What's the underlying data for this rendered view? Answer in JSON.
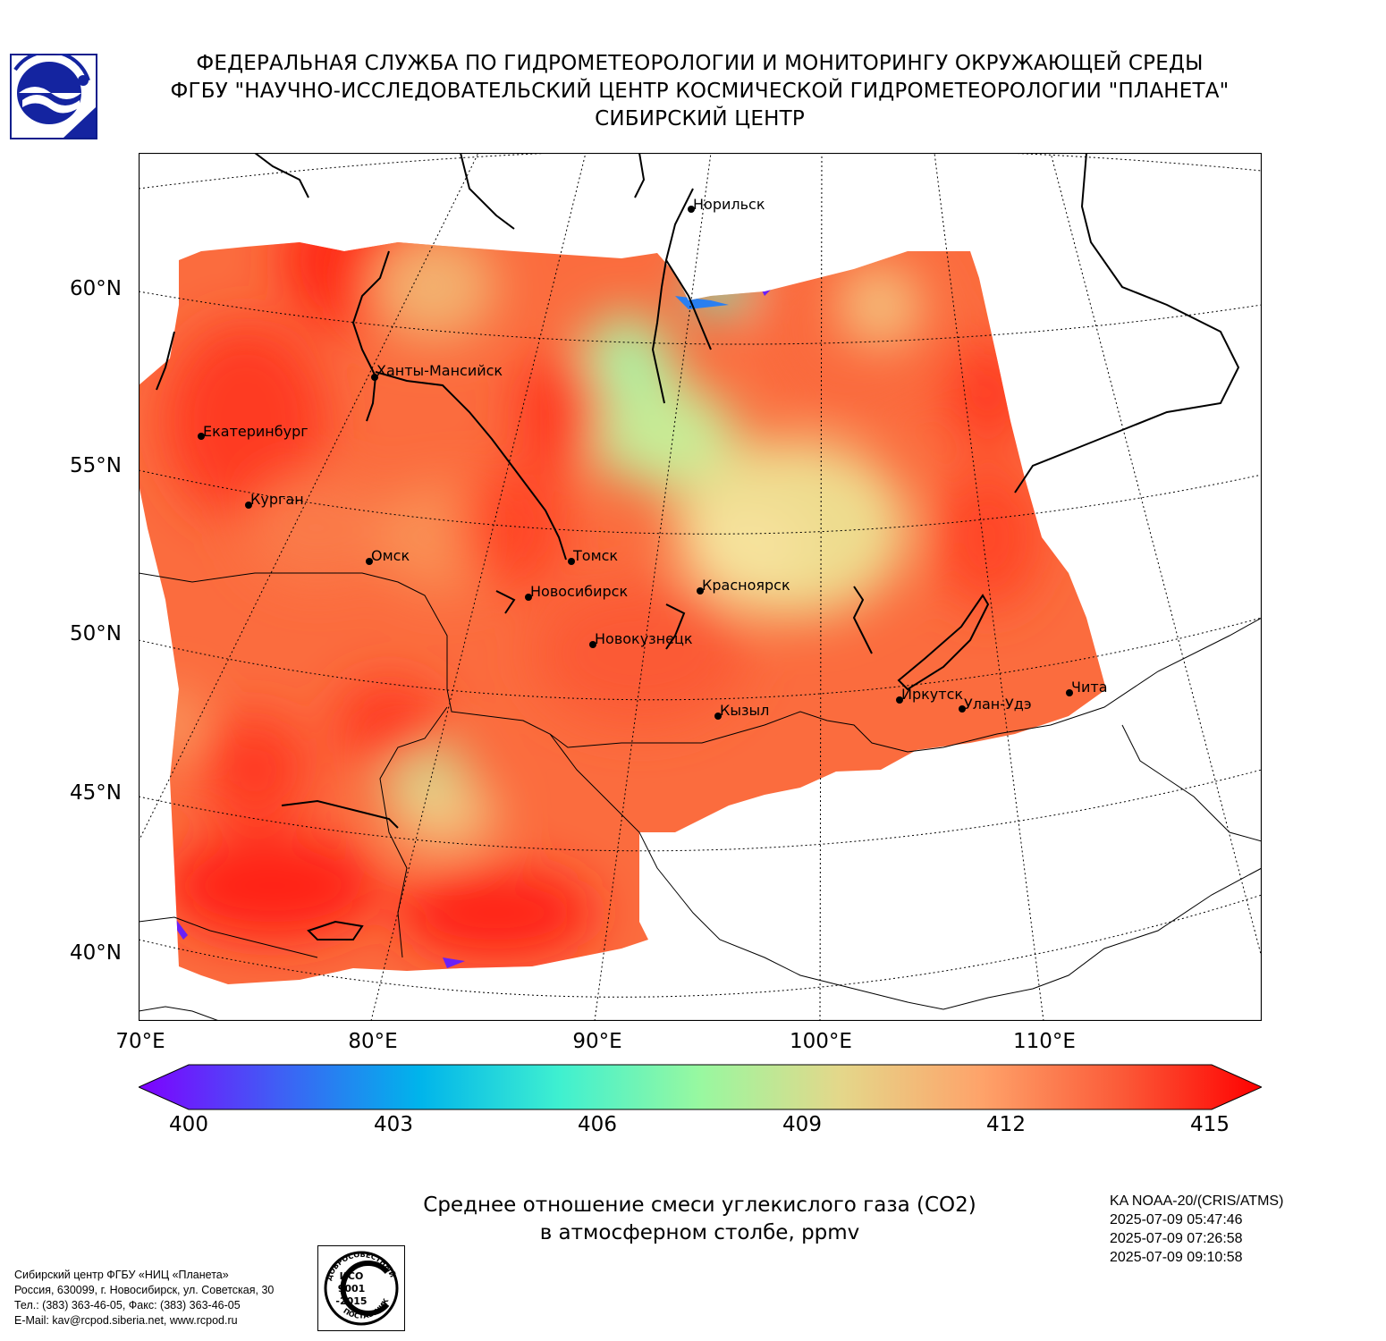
{
  "header": {
    "line1": "ФЕДЕРАЛЬНАЯ СЛУЖБА ПО ГИДРОМЕТЕОРОЛОГИИ И МОНИТОРИНГУ ОКРУЖАЮЩЕЙ СРЕДЫ",
    "line2": "ФГБУ \"НАУЧНО-ИССЛЕДОВАТЕЛЬСКИЙ ЦЕНТР КОСМИЧЕСКОЙ ГИДРОМЕТЕОРОЛОГИИ \"ПЛАНЕТА\"",
    "line3": "СИБИРСКИЙ ЦЕНТР",
    "logo_icon": "planeta-logo-icon"
  },
  "map": {
    "lat_labels": [
      "60°N",
      "55°N",
      "50°N",
      "45°N",
      "40°N"
    ],
    "lon_labels": [
      "70°E",
      "80°E",
      "90°E",
      "100°E",
      "110°E"
    ],
    "cities": [
      {
        "name": "Норильск"
      },
      {
        "name": "Ханты-Мансийск"
      },
      {
        "name": "Екатеринбург"
      },
      {
        "name": "Курган"
      },
      {
        "name": "Омск"
      },
      {
        "name": "Томск"
      },
      {
        "name": "Новосибирск"
      },
      {
        "name": "Красноярск"
      },
      {
        "name": "Новокузнецк"
      },
      {
        "name": "Кызыл"
      },
      {
        "name": "Иркутск"
      },
      {
        "name": "Улан-Удэ"
      },
      {
        "name": "Чита"
      }
    ]
  },
  "colorbar": {
    "ticks": [
      "400",
      "403",
      "406",
      "409",
      "412",
      "415"
    ],
    "range": [
      400,
      415
    ],
    "colors": [
      "#7f00ff",
      "#3f5ff5",
      "#00b4eb",
      "#3ff0d0",
      "#98f8a0",
      "#e4d78a",
      "#fea36a",
      "#fb5a38",
      "#ff0000"
    ]
  },
  "caption": {
    "line1": "Среднее отношение смеси углекислого газа (CO2)",
    "line2": "в атмосферном столбе, ppmv"
  },
  "satellite": {
    "name": "KA NOAA-20/(CRIS/ATMS)",
    "times": [
      "2025-07-09 05:47:46",
      "2025-07-09 07:26:58",
      "2025-07-09 09:10:58"
    ]
  },
  "organization": {
    "lines": [
      "Сибирский центр ФГБУ «НИЦ «Планета»",
      "Россия, 630099, г. Новосибирск, ул. Советская, 30",
      "Тел.: (383) 363-46-05, Факс: (383) 363-46-05",
      "E-Mail: kav@rcpod.siberia.net, www.rcpod.ru"
    ]
  },
  "iso_badge": {
    "top_text": "ДОБРОСОВЕСТНЫЙ",
    "line1": "ИСО",
    "line2": "9001",
    "line3": "-2015",
    "bottom_text": "ПОСТАВЩИК"
  }
}
